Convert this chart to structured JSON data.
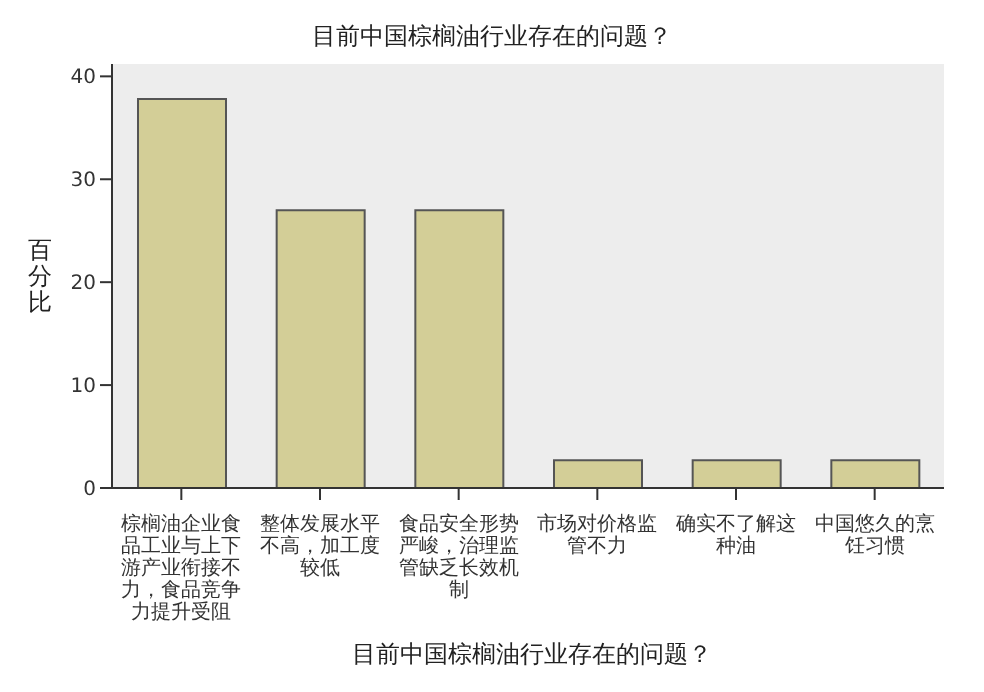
{
  "chart_data": {
    "type": "bar",
    "title": "目前中国棕榈油行业存在的问题？",
    "xlabel": "目前中国棕榈油行业存在的问题？",
    "ylabel": "百分比",
    "categories": [
      "棕榈油企业食品工业与上下游产业衔接不力，食品竞争力提升受阻",
      "整体发展水平不高，加工度较低",
      "食品安全形势严峻，治理监管缺乏长效机制",
      "市场对价格监管不力",
      "确实不了解这种油",
      "中国悠久的烹饪习惯"
    ],
    "values": [
      37.8,
      27,
      27,
      2.7,
      2.7,
      2.7
    ],
    "color": "#d3ce97",
    "ylim": [
      0,
      41.2
    ],
    "yticks": [
      0,
      10,
      20,
      30,
      40
    ],
    "grid": false,
    "legend": false
  }
}
